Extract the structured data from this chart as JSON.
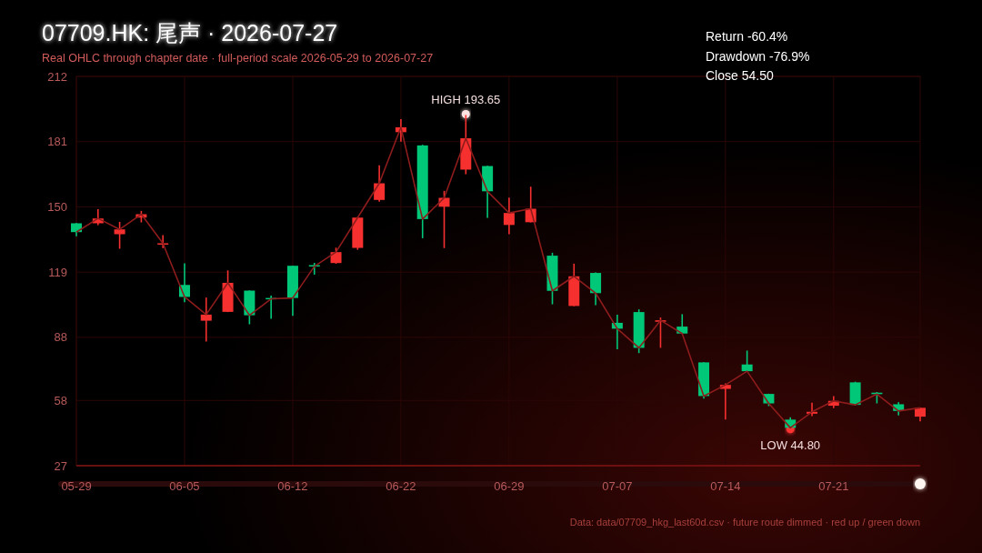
{
  "chart_data": {
    "type": "candlestick",
    "title": "07709.HK: 尾声 · 2026-07-27",
    "subtitle": "Real OHLC through chapter date · full-period scale 2026-05-29 to 2026-07-27",
    "categories": [
      "05-29",
      null,
      null,
      null,
      null,
      "06-05",
      null,
      null,
      null,
      null,
      "06-12",
      null,
      null,
      null,
      null,
      "06-22",
      null,
      null,
      null,
      null,
      "06-29",
      null,
      null,
      null,
      null,
      "07-07",
      null,
      null,
      null,
      null,
      "07-14",
      null,
      null,
      null,
      null,
      "07-21",
      null,
      null,
      null,
      null
    ],
    "ohlc": [
      [
        142.2,
        142.3,
        136.0,
        138.0
      ],
      [
        142.2,
        148.9,
        141.3,
        144.5
      ],
      [
        137.0,
        142.9,
        130.1,
        139.3
      ],
      [
        144.9,
        148.1,
        142.6,
        146.5
      ],
      [
        132.1,
        136.6,
        130.4,
        132.7
      ],
      [
        112.9,
        123.2,
        104.7,
        107.2
      ],
      [
        95.9,
        106.9,
        86.0,
        98.8
      ],
      [
        100.1,
        119.8,
        100.0,
        113.9
      ],
      [
        110.2,
        110.3,
        94.2,
        98.5
      ],
      [
        106.7,
        107.8,
        96.8,
        106.3
      ],
      [
        122.0,
        122.1,
        98.2,
        106.7
      ],
      [
        122.3,
        123.4,
        117.8,
        121.7
      ],
      [
        123.3,
        130.6,
        123.0,
        128.5
      ],
      [
        130.5,
        145.2,
        129.6,
        144.9
      ],
      [
        153.3,
        169.7,
        152.5,
        161.2
      ],
      [
        185.5,
        191.7,
        181.0,
        187.8
      ],
      [
        179.2,
        179.5,
        135.1,
        144.2
      ],
      [
        150.1,
        157.6,
        130.4,
        154.3
      ],
      [
        167.7,
        193.65,
        165.5,
        182.6
      ],
      [
        169.4,
        169.5,
        144.8,
        157.4
      ],
      [
        141.4,
        154.4,
        137.0,
        147.1
      ],
      [
        142.7,
        159.6,
        142.6,
        149.1
      ],
      [
        126.8,
        128.2,
        103.7,
        110.1
      ],
      [
        102.9,
        123.0,
        102.8,
        117.0
      ],
      [
        118.6,
        118.9,
        103.3,
        109.0
      ],
      [
        94.9,
        98.7,
        82.3,
        92.1
      ],
      [
        100.0,
        101.3,
        80.5,
        83.0
      ],
      [
        95.4,
        97.4,
        83.0,
        96.1
      ],
      [
        93.1,
        99.0,
        89.7,
        89.8
      ],
      [
        76.1,
        76.2,
        58.9,
        60.1
      ],
      [
        63.5,
        66.1,
        48.9,
        65.4
      ],
      [
        75.1,
        81.7,
        71.8,
        71.9
      ],
      [
        61.1,
        61.2,
        55.3,
        56.6
      ],
      [
        48.9,
        50.0,
        44.8,
        45.0
      ],
      [
        51.7,
        56.9,
        50.6,
        52.6
      ],
      [
        55.5,
        60.1,
        54.3,
        57.8
      ],
      [
        66.6,
        66.9,
        55.6,
        55.9
      ],
      [
        61.7,
        62.0,
        56.6,
        61.0
      ],
      [
        56.2,
        57.2,
        50.9,
        53.0
      ],
      [
        50.3,
        54.5,
        48.1,
        54.5
      ]
    ],
    "colors": [
      "#00c878",
      "#f5302f",
      "#f5302f",
      "#f5302f",
      "#f5302f",
      "#00c878",
      "#f5302f",
      "#f5302f",
      "#00c878",
      "#00c878",
      "#00c878",
      "#00c878",
      "#f5302f",
      "#f5302f",
      "#f5302f",
      "#f5302f",
      "#00c878",
      "#f5302f",
      "#f5302f",
      "#00c878",
      "#f5302f",
      "#f5302f",
      "#00c878",
      "#f5302f",
      "#00c878",
      "#00c878",
      "#00c878",
      "#f5302f",
      "#00c878",
      "#00c878",
      "#f5302f",
      "#00c878",
      "#00c878",
      "#00c878",
      "#f5302f",
      "#f5302f",
      "#00c878",
      "#00c878",
      "#00c878",
      "#f5302f"
    ],
    "series": [
      {
        "type": "line",
        "color": "#8e1c1c",
        "values": [
          138.0,
          144.5,
          139.3,
          146.5,
          132.7,
          107.2,
          98.8,
          113.9,
          98.5,
          106.3,
          106.7,
          121.7,
          128.5,
          144.9,
          161.2,
          187.8,
          144.2,
          154.3,
          182.6,
          157.4,
          147.1,
          149.1,
          110.1,
          117.0,
          109.0,
          92.1,
          83.0,
          96.1,
          89.8,
          60.1,
          65.4,
          71.9,
          56.6,
          45.0,
          52.6,
          57.8,
          55.9,
          61.0,
          53.0,
          54.5
        ]
      }
    ],
    "ylim": [
      27,
      212
    ],
    "yticks": [
      27,
      58,
      88,
      119,
      150,
      181,
      212
    ],
    "grid": true,
    "annotations": [
      {
        "text": "HIGH 193.65",
        "y": 193.65
      },
      {
        "text": "LOW 44.80",
        "y": 44.8
      },
      "Return -60.4%",
      "Drawdown -76.9%",
      "Close 54.50",
      "Data: data/07709_hkg_last60d.csv · future route dimmed · red up / green down"
    ]
  }
}
